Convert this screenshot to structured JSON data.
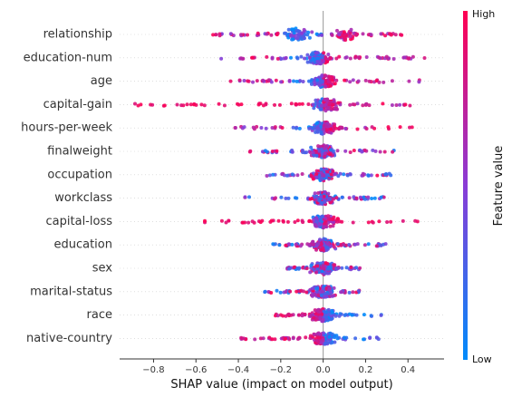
{
  "chart_data": {
    "type": "scatter",
    "subtype": "shap-beeswarm",
    "xlabel": "SHAP value (impact on model output)",
    "xlim": [
      -0.96,
      0.57
    ],
    "xticks": [
      -0.8,
      -0.6,
      -0.4,
      -0.2,
      0.0,
      0.2,
      0.4
    ],
    "xtick_labels": [
      "−0.8",
      "−0.6",
      "−0.4",
      "−0.2",
      "0.0",
      "0.2",
      "0.4"
    ],
    "colorbar": {
      "label": "Feature value",
      "high": "High",
      "low": "Low",
      "high_color": "#ff0052",
      "low_color": "#008bfb"
    },
    "features": [
      {
        "name": "relationship",
        "min": -0.53,
        "max": 0.4,
        "pos_mean": "high",
        "peaks": [
          -0.12,
          0.1
        ]
      },
      {
        "name": "education-num",
        "min": -0.52,
        "max": 0.49,
        "pos_mean": "high",
        "peaks": [
          -0.02
        ]
      },
      {
        "name": "age",
        "min": -0.44,
        "max": 0.46,
        "pos_mean": "high",
        "peaks": [
          0.0
        ]
      },
      {
        "name": "capital-gain",
        "min": -0.89,
        "max": 0.41,
        "pos_mean": "high",
        "peaks": [
          0.02
        ]
      },
      {
        "name": "hours-per-week",
        "min": -0.42,
        "max": 0.42,
        "pos_mean": "high",
        "peaks": [
          0.0
        ]
      },
      {
        "name": "finalweight",
        "min": -0.37,
        "max": 0.34,
        "pos_mean": "mixed",
        "peaks": [
          0.0
        ]
      },
      {
        "name": "occupation",
        "min": -0.28,
        "max": 0.32,
        "pos_mean": "mixed",
        "peaks": [
          0.0
        ]
      },
      {
        "name": "workclass",
        "min": -0.37,
        "max": 0.29,
        "pos_mean": "mixed",
        "peaks": [
          0.0
        ]
      },
      {
        "name": "capital-loss",
        "min": -0.56,
        "max": 0.45,
        "pos_mean": "high",
        "peaks": [
          0.0
        ]
      },
      {
        "name": "education",
        "min": -0.24,
        "max": 0.3,
        "pos_mean": "mixed",
        "peaks": [
          0.0
        ]
      },
      {
        "name": "sex",
        "min": -0.18,
        "max": 0.2,
        "pos_mean": "mixed",
        "peaks": [
          0.0
        ]
      },
      {
        "name": "marital-status",
        "min": -0.28,
        "max": 0.19,
        "pos_mean": "mixed",
        "peaks": [
          0.0
        ]
      },
      {
        "name": "race",
        "min": -0.25,
        "max": 0.31,
        "pos_mean": "low",
        "peaks": [
          0.0
        ]
      },
      {
        "name": "native-country",
        "min": -0.45,
        "max": 0.27,
        "pos_mean": "low",
        "peaks": [
          0.0
        ]
      }
    ]
  }
}
